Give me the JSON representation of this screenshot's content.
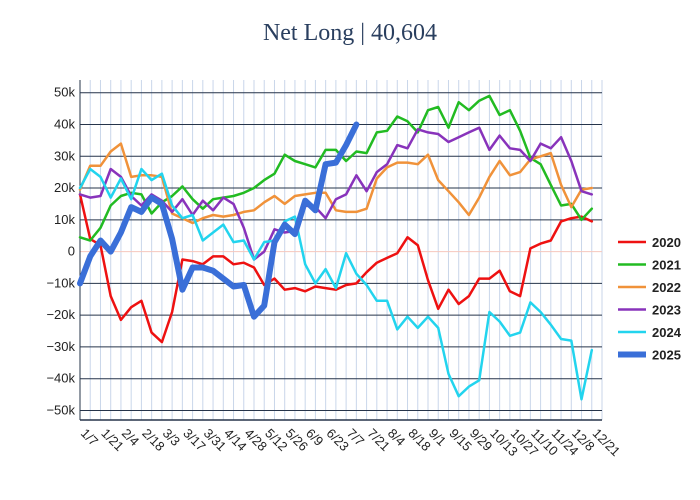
{
  "chart_data": {
    "type": "line",
    "title": "Net Long | 40,604",
    "xlabel": "",
    "ylabel": "",
    "ylim": [
      -53000,
      54000
    ],
    "y_ticks": [
      -50000,
      -40000,
      -30000,
      -20000,
      -10000,
      0,
      10000,
      20000,
      30000,
      40000,
      50000
    ],
    "y_tick_labels": [
      "−50k",
      "−40k",
      "−30k",
      "−20k",
      "−10k",
      "0",
      "10k",
      "20k",
      "30k",
      "40k",
      "50k"
    ],
    "x_tick_labels": [
      "1/7",
      "1/21",
      "2/4",
      "2/18",
      "3/3",
      "3/17",
      "3/31",
      "4/14",
      "4/28",
      "5/12",
      "5/26",
      "6/9",
      "6/23",
      "7/7",
      "7/21",
      "8/4",
      "8/18",
      "9/1",
      "9/15",
      "9/29",
      "10/13",
      "10/27",
      "11/10",
      "11/24",
      "12/8",
      "12/21"
    ],
    "x_tick_weeks": [
      0,
      2,
      4,
      6,
      8,
      10,
      12,
      14,
      16,
      18,
      20,
      22,
      24,
      26,
      28,
      30,
      32,
      34,
      36,
      38,
      40,
      42,
      44,
      46,
      48,
      50
    ],
    "grid": true,
    "legend_position": "right",
    "series": [
      {
        "name": "2020",
        "color": "#ee1111",
        "width": 2.5,
        "x": [
          0,
          1,
          2,
          3,
          4,
          5,
          6,
          7,
          8,
          9,
          10,
          11,
          12,
          13,
          14,
          15,
          16,
          17,
          18,
          19,
          20,
          21,
          22,
          23,
          24,
          25,
          26,
          27,
          28,
          29,
          30,
          31,
          32,
          33,
          34,
          35,
          36,
          37,
          38,
          39,
          40,
          41,
          42,
          43,
          44,
          45,
          46,
          47,
          48,
          49,
          50
        ],
        "values": [
          18000,
          4000,
          2000,
          -14000,
          -21500,
          -17500,
          -15500,
          -25500,
          -28500,
          -19000,
          -2500,
          -3000,
          -4000,
          -1500,
          -1500,
          -4000,
          -3500,
          -5000,
          -10500,
          -8500,
          -12000,
          -11500,
          -12500,
          -11000,
          -11500,
          -12000,
          -10500,
          -10000,
          -6500,
          -3500,
          -2000,
          -500,
          4500,
          2000,
          -9000,
          -18000,
          -12000,
          -16500,
          -14000,
          -8500,
          -8500,
          -6000,
          -12500,
          -14000,
          1000,
          2500,
          3500,
          9500,
          10500,
          11000,
          9500
        ]
      },
      {
        "name": "2021",
        "color": "#22bb22",
        "width": 2.5,
        "x": [
          0,
          1,
          2,
          3,
          4,
          5,
          6,
          7,
          8,
          9,
          10,
          11,
          12,
          13,
          14,
          15,
          16,
          17,
          18,
          19,
          20,
          21,
          22,
          23,
          24,
          25,
          26,
          27,
          28,
          29,
          30,
          31,
          32,
          33,
          34,
          35,
          36,
          37,
          38,
          39,
          40,
          41,
          42,
          43,
          44,
          45,
          46,
          47,
          48,
          49,
          50
        ],
        "values": [
          4500,
          3500,
          7500,
          14500,
          17500,
          18500,
          18000,
          12000,
          15500,
          17500,
          20500,
          16500,
          13500,
          16500,
          17000,
          17500,
          18500,
          20000,
          22500,
          24500,
          30500,
          28500,
          27500,
          26500,
          32000,
          32000,
          28500,
          31500,
          31000,
          37500,
          38000,
          42500,
          41000,
          37500,
          44500,
          45500,
          39000,
          47000,
          44500,
          47500,
          49000,
          43000,
          44500,
          38000,
          29500,
          27500,
          21000,
          14500,
          15000,
          10000,
          13500
        ]
      },
      {
        "name": "2022",
        "color": "#f0923a",
        "width": 2.5,
        "x": [
          0,
          1,
          2,
          3,
          4,
          5,
          6,
          7,
          8,
          9,
          10,
          11,
          12,
          13,
          14,
          15,
          16,
          17,
          18,
          19,
          20,
          21,
          22,
          23,
          24,
          25,
          26,
          27,
          28,
          29,
          30,
          31,
          32,
          33,
          34,
          35,
          36,
          37,
          38,
          39,
          40,
          41,
          42,
          43,
          44,
          45,
          46,
          47,
          48,
          49,
          50
        ],
        "values": [
          19500,
          27000,
          27000,
          31500,
          34000,
          23500,
          24000,
          24000,
          23500,
          12000,
          10500,
          9000,
          10500,
          11500,
          11000,
          11500,
          12500,
          13000,
          15500,
          17500,
          15000,
          17500,
          18000,
          18500,
          18500,
          13000,
          12500,
          12500,
          13500,
          23000,
          26500,
          28000,
          28000,
          27500,
          30500,
          22500,
          19000,
          15500,
          11500,
          17000,
          23500,
          28500,
          24000,
          25000,
          29000,
          30000,
          31000,
          21000,
          14000,
          19500,
          20000
        ]
      },
      {
        "name": "2023",
        "color": "#8833bb",
        "width": 2.5,
        "x": [
          0,
          1,
          2,
          3,
          4,
          5,
          6,
          7,
          8,
          9,
          10,
          11,
          12,
          13,
          14,
          15,
          16,
          17,
          18,
          19,
          20,
          21,
          22,
          23,
          24,
          25,
          26,
          27,
          28,
          29,
          30,
          31,
          32,
          33,
          34,
          35,
          36,
          37,
          38,
          39,
          40,
          41,
          42,
          43,
          44,
          45,
          46,
          47,
          48,
          49,
          50
        ],
        "values": [
          18000,
          17000,
          17500,
          26000,
          23500,
          17500,
          14500,
          18000,
          16000,
          12500,
          16500,
          11500,
          16000,
          13000,
          17000,
          15000,
          7500,
          -2500,
          0,
          7000,
          6000,
          6500,
          14500,
          14000,
          10500,
          16500,
          18000,
          24000,
          19000,
          25000,
          27500,
          33500,
          32500,
          38500,
          37500,
          37000,
          34500,
          36000,
          37500,
          39000,
          32000,
          36500,
          32500,
          32000,
          28500,
          34000,
          32500,
          36000,
          28500,
          19000,
          18000
        ]
      },
      {
        "name": "2024",
        "color": "#22d4ee",
        "width": 2.5,
        "x": [
          0,
          1,
          2,
          3,
          4,
          5,
          6,
          7,
          8,
          9,
          10,
          11,
          12,
          13,
          14,
          15,
          16,
          17,
          18,
          19,
          20,
          21,
          22,
          23,
          24,
          25,
          26,
          27,
          28,
          29,
          30,
          31,
          32,
          33,
          34,
          35,
          36,
          37,
          38,
          39,
          40,
          41,
          42,
          43,
          44,
          45,
          46,
          47,
          48,
          49,
          50
        ],
        "values": [
          20000,
          26000,
          23500,
          17000,
          23000,
          16500,
          26000,
          22500,
          24500,
          14500,
          10500,
          11500,
          3500,
          6000,
          8500,
          3000,
          3500,
          -2500,
          3000,
          3500,
          9500,
          11000,
          -4000,
          -10000,
          -5500,
          -11500,
          -500,
          -7000,
          -10500,
          -15500,
          -15500,
          -24500,
          -20500,
          -24000,
          -20500,
          -24000,
          -38500,
          -45500,
          -42500,
          -40500,
          -19000,
          -22000,
          -26500,
          -25500,
          -16000,
          -19000,
          -23000,
          -27500,
          -28000,
          -46500,
          -31000
        ]
      },
      {
        "name": "2025",
        "color": "#3a6fd8",
        "width": 6,
        "x": [
          0,
          1,
          2,
          3,
          4,
          5,
          6,
          7,
          8,
          9,
          10,
          11,
          12,
          13,
          14,
          15,
          16,
          17,
          18,
          19,
          20,
          21,
          22,
          23,
          24,
          25,
          26,
          27
        ],
        "values": [
          -10000,
          -1500,
          3500,
          0,
          6000,
          14000,
          12500,
          17000,
          15000,
          4000,
          -12000,
          -5000,
          -5000,
          -6000,
          -8500,
          -11000,
          -10500,
          -20500,
          -17000,
          3000,
          8500,
          5500,
          16000,
          13000,
          27500,
          28000,
          33500,
          40000
        ]
      }
    ]
  }
}
